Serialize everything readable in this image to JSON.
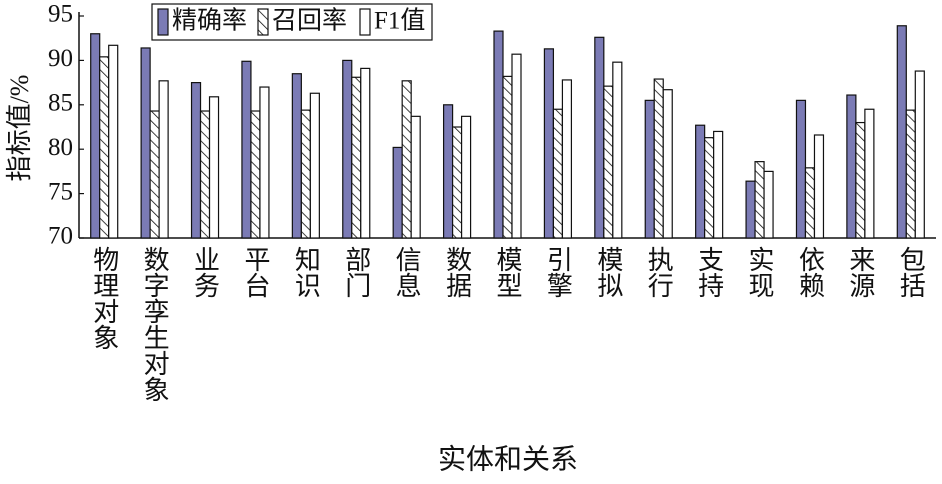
{
  "chart_data": {
    "type": "bar",
    "x_label": "实体和关系",
    "y_label": "指标值/%",
    "categories": [
      "物理对象",
      "数字孪生对象",
      "业务",
      "平台",
      "知识",
      "部门",
      "信息",
      "数据",
      "模型",
      "引擎",
      "模拟",
      "执行",
      "支持",
      "实现",
      "依赖",
      "来源",
      "包括"
    ],
    "series": [
      {
        "name": "精确率",
        "color": "#7b7bb5",
        "values": [
          93.0,
          91.4,
          87.5,
          89.9,
          88.5,
          90.0,
          80.2,
          85.0,
          93.3,
          91.3,
          92.6,
          85.5,
          82.7,
          76.4,
          85.5,
          86.1,
          93.9
        ]
      },
      {
        "name": "召回率",
        "color": "#ffffff",
        "hatch": true,
        "values": [
          90.4,
          84.3,
          84.3,
          84.3,
          84.4,
          88.1,
          87.7,
          82.5,
          88.2,
          84.5,
          87.1,
          87.9,
          81.3,
          78.6,
          77.9,
          83.0,
          84.4
        ]
      },
      {
        "name": "F1值",
        "color": "#ffffff",
        "values": [
          91.7,
          87.7,
          85.9,
          87.0,
          86.3,
          89.1,
          83.7,
          83.7,
          90.7,
          87.8,
          89.8,
          86.7,
          82.0,
          77.5,
          81.6,
          84.5,
          88.8
        ]
      }
    ],
    "ylim": [
      70,
      95
    ],
    "yticks": [
      70,
      75,
      80,
      85,
      90,
      95
    ],
    "grid": false
  }
}
